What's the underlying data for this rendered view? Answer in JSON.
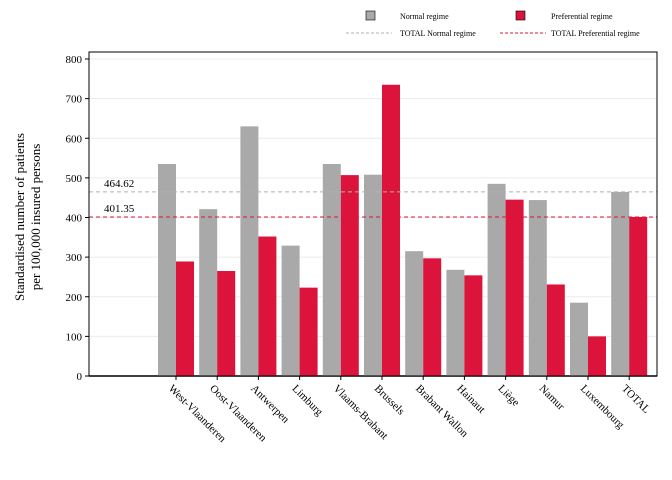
{
  "chart_data": {
    "type": "bar",
    "ylabel_lines": [
      "Standardised number of patients",
      "per 100,000 insured persons"
    ],
    "ylim": [
      0,
      800
    ],
    "yticks": [
      0,
      100,
      200,
      300,
      400,
      500,
      600,
      700,
      800
    ],
    "grid": true,
    "legend_position": "top-right",
    "categories": [
      "West-Vlaanderen",
      "Oost-Vlaanderen",
      "Antwerpen",
      "Limburg",
      "Vlaams-Brabant",
      "Brussels",
      "Brabant Wallon",
      "Hainaut",
      "Liège",
      "Namur",
      "Luxembourg",
      "TOTAL"
    ],
    "series": [
      {
        "name": "Normal regime",
        "color": "#a9a9a9",
        "values": [
          535,
          421,
          630,
          329,
          535,
          508,
          315,
          268,
          485,
          444,
          185,
          464.62
        ]
      },
      {
        "name": "Preferential regime",
        "color": "#dc143c",
        "values": [
          289,
          265,
          352,
          223,
          507,
          735,
          297,
          254,
          445,
          231,
          100,
          401.35
        ]
      }
    ],
    "reference_lines": [
      {
        "name": "TOTAL Normal regime",
        "value": 464.62,
        "label": "464.62",
        "color": "#b0b0b0"
      },
      {
        "name": "TOTAL Preferential regime",
        "value": 401.35,
        "label": "401.35",
        "color": "#dc143c"
      }
    ]
  }
}
